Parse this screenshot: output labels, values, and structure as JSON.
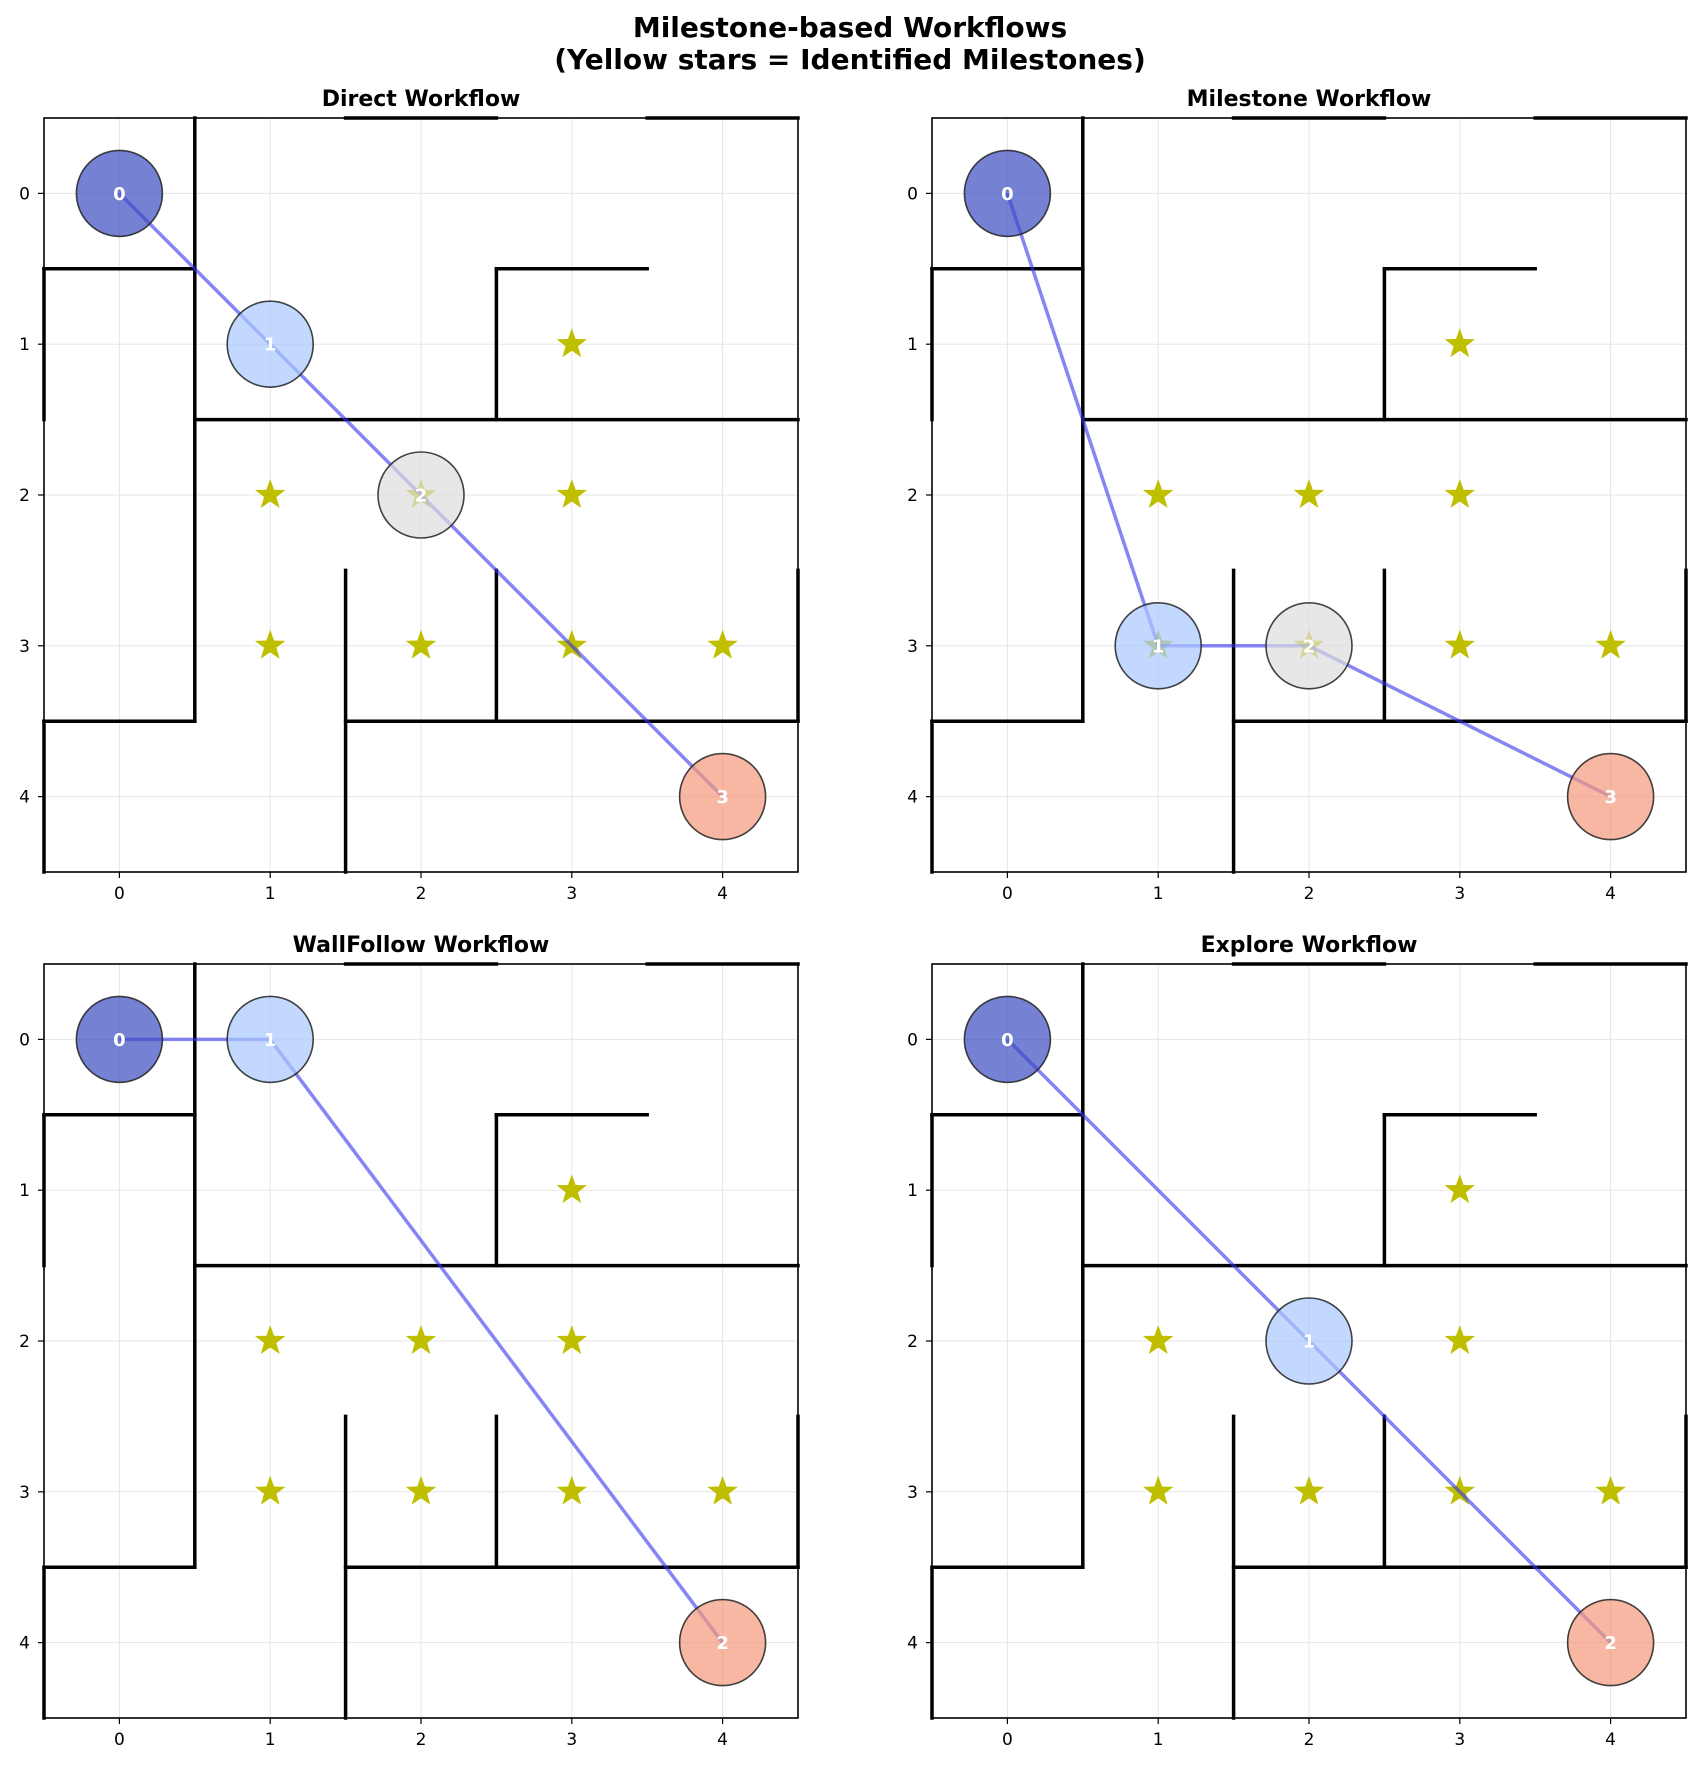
{
  "figure": {
    "title_line1": "Milestone-based Workflows",
    "title_line2": "(Yellow stars = Identified Milestones)"
  },
  "colors": {
    "wall": "#000000",
    "star": "#bfbf00",
    "path": "#3333ee",
    "grid": "#e6e6e6",
    "node_colors": [
      "#3b4cc0",
      "#aac7fd",
      "#dddddd",
      "#f4987a"
    ]
  },
  "chart_data": [
    {
      "type": "scatter",
      "title": "Direct Workflow",
      "xlim": [
        -0.5,
        4.5
      ],
      "ylim": [
        4.5,
        -0.5
      ],
      "xticks": [
        0,
        1,
        2,
        3,
        4
      ],
      "yticks": [
        0,
        1,
        2,
        3,
        4
      ],
      "grid": true,
      "walls": [
        [
          [
            0.5,
            -0.5
          ],
          [
            0.5,
            0.5
          ]
        ],
        [
          [
            1.5,
            -0.5
          ],
          [
            2.5,
            -0.5
          ]
        ],
        [
          [
            3.5,
            -0.5
          ],
          [
            4.5,
            -0.5
          ]
        ],
        [
          [
            -0.5,
            0.5
          ],
          [
            0.5,
            0.5
          ]
        ],
        [
          [
            -0.5,
            0.5
          ],
          [
            -0.5,
            1.5
          ]
        ],
        [
          [
            0.5,
            0.5
          ],
          [
            0.5,
            3.5
          ]
        ],
        [
          [
            2.5,
            0.5
          ],
          [
            3.5,
            0.5
          ]
        ],
        [
          [
            2.5,
            0.5
          ],
          [
            2.5,
            1.5
          ]
        ],
        [
          [
            0.5,
            1.5
          ],
          [
            4.5,
            1.5
          ]
        ],
        [
          [
            1.5,
            2.5
          ],
          [
            1.5,
            4.5
          ]
        ],
        [
          [
            2.5,
            2.5
          ],
          [
            2.5,
            3.5
          ]
        ],
        [
          [
            4.5,
            2.5
          ],
          [
            4.5,
            3.5
          ]
        ],
        [
          [
            -0.5,
            3.5
          ],
          [
            0.5,
            3.5
          ]
        ],
        [
          [
            -0.5,
            3.5
          ],
          [
            -0.5,
            4.5
          ]
        ],
        [
          [
            1.5,
            3.5
          ],
          [
            4.5,
            3.5
          ]
        ]
      ],
      "milestones": [
        [
          3,
          1
        ],
        [
          1,
          2
        ],
        [
          2,
          2
        ],
        [
          3,
          2
        ],
        [
          1,
          3
        ],
        [
          2,
          3
        ],
        [
          3,
          3
        ],
        [
          4,
          3
        ]
      ],
      "waypoints": [
        {
          "label": "0",
          "x": 0,
          "y": 0
        },
        {
          "label": "1",
          "x": 1,
          "y": 1
        },
        {
          "label": "2",
          "x": 2,
          "y": 2
        },
        {
          "label": "3",
          "x": 4,
          "y": 4
        }
      ]
    },
    {
      "type": "scatter",
      "title": "Milestone Workflow",
      "xlim": [
        -0.5,
        4.5
      ],
      "ylim": [
        4.5,
        -0.5
      ],
      "xticks": [
        0,
        1,
        2,
        3,
        4
      ],
      "yticks": [
        0,
        1,
        2,
        3,
        4
      ],
      "grid": true,
      "walls": [
        [
          [
            0.5,
            -0.5
          ],
          [
            0.5,
            0.5
          ]
        ],
        [
          [
            1.5,
            -0.5
          ],
          [
            2.5,
            -0.5
          ]
        ],
        [
          [
            3.5,
            -0.5
          ],
          [
            4.5,
            -0.5
          ]
        ],
        [
          [
            -0.5,
            0.5
          ],
          [
            0.5,
            0.5
          ]
        ],
        [
          [
            -0.5,
            0.5
          ],
          [
            -0.5,
            1.5
          ]
        ],
        [
          [
            0.5,
            0.5
          ],
          [
            0.5,
            3.5
          ]
        ],
        [
          [
            2.5,
            0.5
          ],
          [
            3.5,
            0.5
          ]
        ],
        [
          [
            2.5,
            0.5
          ],
          [
            2.5,
            1.5
          ]
        ],
        [
          [
            0.5,
            1.5
          ],
          [
            4.5,
            1.5
          ]
        ],
        [
          [
            1.5,
            2.5
          ],
          [
            1.5,
            4.5
          ]
        ],
        [
          [
            2.5,
            2.5
          ],
          [
            2.5,
            3.5
          ]
        ],
        [
          [
            4.5,
            2.5
          ],
          [
            4.5,
            3.5
          ]
        ],
        [
          [
            -0.5,
            3.5
          ],
          [
            0.5,
            3.5
          ]
        ],
        [
          [
            -0.5,
            3.5
          ],
          [
            -0.5,
            4.5
          ]
        ],
        [
          [
            1.5,
            3.5
          ],
          [
            4.5,
            3.5
          ]
        ]
      ],
      "milestones": [
        [
          3,
          1
        ],
        [
          1,
          2
        ],
        [
          2,
          2
        ],
        [
          3,
          2
        ],
        [
          1,
          3
        ],
        [
          2,
          3
        ],
        [
          3,
          3
        ],
        [
          4,
          3
        ]
      ],
      "waypoints": [
        {
          "label": "0",
          "x": 0,
          "y": 0
        },
        {
          "label": "1",
          "x": 1,
          "y": 3
        },
        {
          "label": "2",
          "x": 2,
          "y": 3
        },
        {
          "label": "3",
          "x": 4,
          "y": 4
        }
      ]
    },
    {
      "type": "scatter",
      "title": "WallFollow Workflow",
      "xlim": [
        -0.5,
        4.5
      ],
      "ylim": [
        4.5,
        -0.5
      ],
      "xticks": [
        0,
        1,
        2,
        3,
        4
      ],
      "yticks": [
        0,
        1,
        2,
        3,
        4
      ],
      "grid": true,
      "walls": [
        [
          [
            0.5,
            -0.5
          ],
          [
            0.5,
            0.5
          ]
        ],
        [
          [
            1.5,
            -0.5
          ],
          [
            2.5,
            -0.5
          ]
        ],
        [
          [
            3.5,
            -0.5
          ],
          [
            4.5,
            -0.5
          ]
        ],
        [
          [
            -0.5,
            0.5
          ],
          [
            0.5,
            0.5
          ]
        ],
        [
          [
            -0.5,
            0.5
          ],
          [
            -0.5,
            1.5
          ]
        ],
        [
          [
            0.5,
            0.5
          ],
          [
            0.5,
            3.5
          ]
        ],
        [
          [
            2.5,
            0.5
          ],
          [
            3.5,
            0.5
          ]
        ],
        [
          [
            2.5,
            0.5
          ],
          [
            2.5,
            1.5
          ]
        ],
        [
          [
            0.5,
            1.5
          ],
          [
            4.5,
            1.5
          ]
        ],
        [
          [
            1.5,
            2.5
          ],
          [
            1.5,
            4.5
          ]
        ],
        [
          [
            2.5,
            2.5
          ],
          [
            2.5,
            3.5
          ]
        ],
        [
          [
            4.5,
            2.5
          ],
          [
            4.5,
            3.5
          ]
        ],
        [
          [
            -0.5,
            3.5
          ],
          [
            0.5,
            3.5
          ]
        ],
        [
          [
            -0.5,
            3.5
          ],
          [
            -0.5,
            4.5
          ]
        ],
        [
          [
            1.5,
            3.5
          ],
          [
            4.5,
            3.5
          ]
        ]
      ],
      "milestones": [
        [
          3,
          1
        ],
        [
          1,
          2
        ],
        [
          2,
          2
        ],
        [
          3,
          2
        ],
        [
          1,
          3
        ],
        [
          2,
          3
        ],
        [
          3,
          3
        ],
        [
          4,
          3
        ]
      ],
      "waypoints": [
        {
          "label": "0",
          "x": 0,
          "y": 0
        },
        {
          "label": "1",
          "x": 1,
          "y": 0
        },
        {
          "label": "2",
          "x": 4,
          "y": 4
        }
      ]
    },
    {
      "type": "scatter",
      "title": "Explore Workflow",
      "xlim": [
        -0.5,
        4.5
      ],
      "ylim": [
        4.5,
        -0.5
      ],
      "xticks": [
        0,
        1,
        2,
        3,
        4
      ],
      "yticks": [
        0,
        1,
        2,
        3,
        4
      ],
      "grid": true,
      "walls": [
        [
          [
            0.5,
            -0.5
          ],
          [
            0.5,
            0.5
          ]
        ],
        [
          [
            1.5,
            -0.5
          ],
          [
            2.5,
            -0.5
          ]
        ],
        [
          [
            3.5,
            -0.5
          ],
          [
            4.5,
            -0.5
          ]
        ],
        [
          [
            -0.5,
            0.5
          ],
          [
            0.5,
            0.5
          ]
        ],
        [
          [
            -0.5,
            0.5
          ],
          [
            -0.5,
            1.5
          ]
        ],
        [
          [
            0.5,
            0.5
          ],
          [
            0.5,
            3.5
          ]
        ],
        [
          [
            2.5,
            0.5
          ],
          [
            3.5,
            0.5
          ]
        ],
        [
          [
            2.5,
            0.5
          ],
          [
            2.5,
            1.5
          ]
        ],
        [
          [
            0.5,
            1.5
          ],
          [
            4.5,
            1.5
          ]
        ],
        [
          [
            1.5,
            2.5
          ],
          [
            1.5,
            4.5
          ]
        ],
        [
          [
            2.5,
            2.5
          ],
          [
            2.5,
            3.5
          ]
        ],
        [
          [
            4.5,
            2.5
          ],
          [
            4.5,
            3.5
          ]
        ],
        [
          [
            -0.5,
            3.5
          ],
          [
            0.5,
            3.5
          ]
        ],
        [
          [
            -0.5,
            3.5
          ],
          [
            -0.5,
            4.5
          ]
        ],
        [
          [
            1.5,
            3.5
          ],
          [
            4.5,
            3.5
          ]
        ]
      ],
      "milestones": [
        [
          3,
          1
        ],
        [
          1,
          2
        ],
        [
          3,
          2
        ],
        [
          1,
          3
        ],
        [
          2,
          3
        ],
        [
          3,
          3
        ],
        [
          4,
          3
        ]
      ],
      "waypoints": [
        {
          "label": "0",
          "x": 0,
          "y": 0
        },
        {
          "label": "1",
          "x": 2,
          "y": 2
        },
        {
          "label": "2",
          "x": 4,
          "y": 4
        }
      ]
    }
  ]
}
